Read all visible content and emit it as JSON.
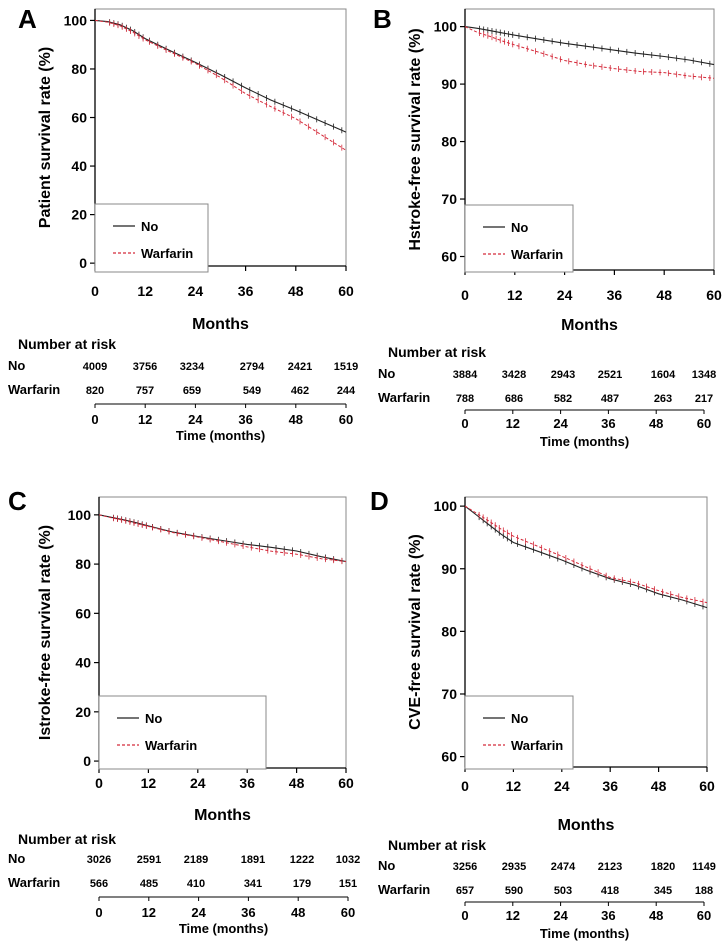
{
  "colors": {
    "no_series": "#222222",
    "warfarin_series": "#d42a3a",
    "axis": "#000000",
    "frame": "#888888"
  },
  "chart_data": [
    {
      "panel": "A",
      "type": "line",
      "ylabel": "Patient survival rate (%)",
      "xlabel": "Months",
      "xlim": [
        0,
        60
      ],
      "ylim": [
        -2,
        101
      ],
      "xticks": [
        0,
        12,
        24,
        36,
        48,
        60
      ],
      "yticks": [
        0,
        20,
        40,
        60,
        80,
        100
      ],
      "legend_placement": "bottom-left",
      "series": [
        {
          "name": "No",
          "style": "solid",
          "x": [
            0,
            3,
            6,
            9,
            12,
            18,
            24,
            30,
            36,
            42,
            48,
            54,
            60
          ],
          "y": [
            100,
            99.5,
            98.2,
            95.8,
            92.5,
            87.5,
            82.7,
            77.6,
            72.2,
            67.2,
            63.0,
            58.5,
            54.0
          ]
        },
        {
          "name": "Warfarin",
          "style": "dashed",
          "x": [
            0,
            3,
            6,
            9,
            12,
            18,
            24,
            30,
            36,
            42,
            48,
            54,
            60
          ],
          "y": [
            100,
            99.3,
            97.8,
            95.2,
            92.0,
            87.0,
            82.3,
            76.5,
            69.8,
            64.5,
            59.5,
            53.0,
            46.5
          ]
        }
      ],
      "risk_table": {
        "title": "Number at risk",
        "axis_label": "Time (months)",
        "ticks": [
          0,
          12,
          24,
          36,
          48,
          60
        ],
        "rows": [
          {
            "label": "No",
            "values": [
              "4009",
              "3756",
              "3234",
              "2794",
              "2421",
              "1519"
            ]
          },
          {
            "label": "Warfarin",
            "values": [
              "820",
              "757",
              "659",
              "549",
              "462",
              "244"
            ]
          }
        ]
      }
    },
    {
      "panel": "B",
      "type": "line",
      "ylabel": "Hstroke-free survival rate (%)",
      "xlabel": "Months",
      "xlim": [
        0,
        60
      ],
      "ylim": [
        58,
        101.5
      ],
      "xticks": [
        0,
        12,
        24,
        36,
        48,
        60
      ],
      "yticks": [
        60,
        70,
        80,
        90,
        100
      ],
      "legend_placement": "bottom-left",
      "series": [
        {
          "name": "No",
          "style": "solid",
          "x": [
            0,
            3,
            6,
            9,
            12,
            18,
            24,
            30,
            36,
            42,
            48,
            54,
            60
          ],
          "y": [
            100,
            99.7,
            99.3,
            98.9,
            98.5,
            97.8,
            97.1,
            96.5,
            95.9,
            95.3,
            94.8,
            94.2,
            93.4
          ]
        },
        {
          "name": "Warfarin",
          "style": "dashed",
          "x": [
            0,
            3,
            6,
            9,
            12,
            18,
            24,
            30,
            36,
            42,
            48,
            54,
            60
          ],
          "y": [
            100,
            99.0,
            98.3,
            97.5,
            96.8,
            95.5,
            94.1,
            93.3,
            92.7,
            92.2,
            92.0,
            91.4,
            91.0
          ]
        }
      ],
      "risk_table": {
        "title": "Number at risk",
        "axis_label": "Time (months)",
        "ticks": [
          0,
          12,
          24,
          36,
          48,
          60
        ],
        "rows": [
          {
            "label": "No",
            "values": [
              "3884",
              "3428",
              "2943",
              "2521",
              "1604",
              "1348"
            ]
          },
          {
            "label": "Warfarin",
            "values": [
              "788",
              "686",
              "582",
              "487",
              "263",
              "217"
            ]
          }
        ]
      }
    },
    {
      "panel": "C",
      "type": "line",
      "ylabel": "Istroke-free survival rate (%)",
      "xlabel": "Months",
      "xlim": [
        0,
        60
      ],
      "ylim": [
        -2,
        104
      ],
      "xticks": [
        0,
        12,
        24,
        36,
        48,
        60
      ],
      "yticks": [
        0,
        20,
        40,
        60,
        80,
        100
      ],
      "legend_placement": "bottom-left",
      "series": [
        {
          "name": "No",
          "style": "solid",
          "x": [
            0,
            3,
            6,
            9,
            12,
            18,
            24,
            30,
            36,
            42,
            48,
            54,
            60
          ],
          "y": [
            100,
            99.0,
            98.0,
            96.8,
            95.5,
            93.0,
            91.2,
            89.6,
            88.0,
            86.8,
            85.3,
            83.0,
            81.0
          ]
        },
        {
          "name": "Warfarin",
          "style": "dashed",
          "x": [
            0,
            3,
            6,
            9,
            12,
            18,
            24,
            30,
            36,
            42,
            48,
            54,
            60
          ],
          "y": [
            100,
            98.8,
            97.8,
            96.5,
            95.3,
            92.8,
            91.0,
            89.0,
            87.0,
            85.2,
            84.0,
            82.2,
            81.0
          ]
        }
      ],
      "risk_table": {
        "title": "Number at risk",
        "axis_label": "Time (months)",
        "ticks": [
          0,
          12,
          24,
          36,
          48,
          60
        ],
        "rows": [
          {
            "label": "No",
            "values": [
              "3026",
              "2591",
              "2189",
              "1891",
              "1222",
              "1032"
            ]
          },
          {
            "label": "Warfarin",
            "values": [
              "566",
              "485",
              "410",
              "341",
              "179",
              "151"
            ]
          }
        ]
      }
    },
    {
      "panel": "D",
      "type": "line",
      "ylabel": "CVE-free survival rate (%)",
      "xlabel": "Months",
      "xlim": [
        0,
        60
      ],
      "ylim": [
        58.5,
        100.5
      ],
      "xticks": [
        0,
        12,
        24,
        36,
        48,
        60
      ],
      "yticks": [
        60,
        70,
        80,
        90,
        100
      ],
      "legend_placement": "bottom-left",
      "series": [
        {
          "name": "No",
          "style": "solid",
          "x": [
            0,
            3,
            6,
            9,
            12,
            18,
            24,
            30,
            36,
            42,
            48,
            54,
            60
          ],
          "y": [
            100,
            98.5,
            97.0,
            95.5,
            94.2,
            92.8,
            91.4,
            89.8,
            88.4,
            87.4,
            86.0,
            85.0,
            83.8
          ]
        },
        {
          "name": "Warfarin",
          "style": "dashed",
          "x": [
            0,
            3,
            6,
            9,
            12,
            18,
            24,
            30,
            36,
            42,
            48,
            54,
            60
          ],
          "y": [
            100,
            98.8,
            97.6,
            96.3,
            95.2,
            93.6,
            92.0,
            90.3,
            88.6,
            87.8,
            86.5,
            85.4,
            84.6
          ]
        }
      ],
      "risk_table": {
        "title": "Number at risk",
        "axis_label": "Time (months)",
        "ticks": [
          0,
          12,
          24,
          36,
          48,
          60
        ],
        "rows": [
          {
            "label": "No",
            "values": [
              "3256",
              "2935",
              "2474",
              "2123",
              "1820",
              "1149"
            ]
          },
          {
            "label": "Warfarin",
            "values": [
              "657",
              "590",
              "503",
              "418",
              "345",
              "188"
            ]
          }
        ]
      }
    }
  ]
}
